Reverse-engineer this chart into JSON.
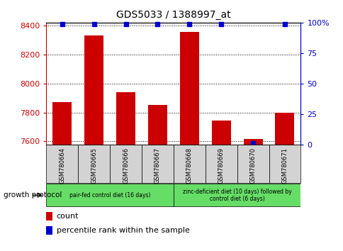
{
  "title": "GDS5033 / 1388997_at",
  "samples": [
    "GSM780664",
    "GSM780665",
    "GSM780666",
    "GSM780667",
    "GSM780668",
    "GSM780669",
    "GSM780670",
    "GSM780671"
  ],
  "counts": [
    7870,
    8330,
    7940,
    7852,
    8355,
    7745,
    7618,
    7800
  ],
  "percentiles": [
    99,
    99,
    99,
    99,
    99,
    99,
    1,
    99
  ],
  "ylim_left": [
    7580,
    8420
  ],
  "ylim_right": [
    0,
    100
  ],
  "yticks_left": [
    7600,
    7800,
    8000,
    8200,
    8400
  ],
  "yticks_right": [
    0,
    25,
    50,
    75,
    100
  ],
  "ytick_right_labels": [
    "0",
    "25",
    "50",
    "75",
    "100%"
  ],
  "bar_color": "#CC0000",
  "percentile_color": "#0000CC",
  "tick_color_left": "#CC0000",
  "tick_color_right": "#0000CC",
  "background_color": "#ffffff",
  "sample_box_color": "#d3d3d3",
  "green_color": "#66DD66",
  "group_ranges": [
    [
      0,
      3,
      "pair-fed control diet (16 days)"
    ],
    [
      4,
      7,
      "zinc-deficient diet (10 days) followed by\ncontrol diet (6 days)"
    ]
  ],
  "group_protocol_label": "growth protocol",
  "legend_count_label": "count",
  "legend_pct_label": "percentile rank within the sample"
}
